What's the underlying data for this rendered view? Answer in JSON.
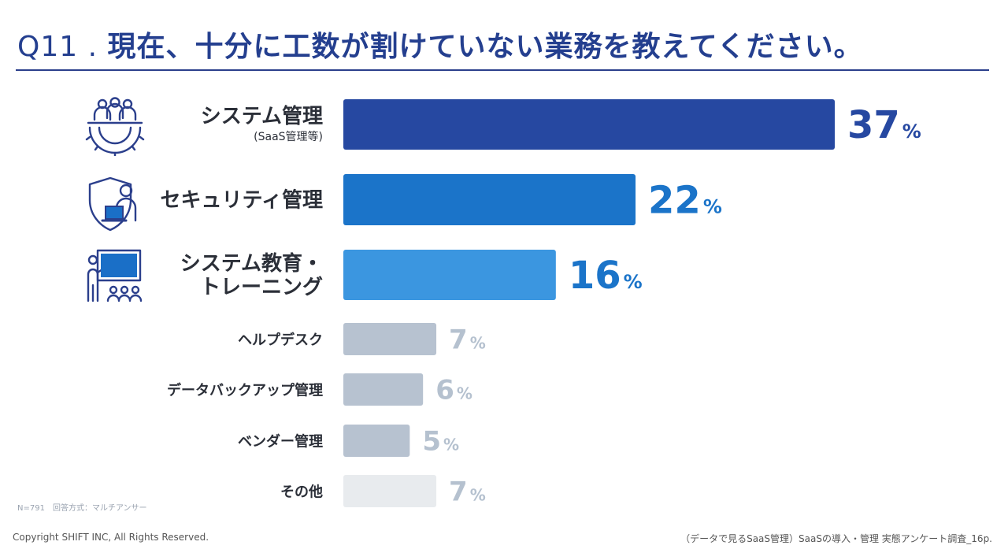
{
  "header": {
    "q_number": "Q11 .",
    "q_text": "現在、十分に工数が割けていない業務を教えてください。"
  },
  "colors": {
    "title": "#243f8f",
    "label": "#2b2f38",
    "value_dark": "#264aa3",
    "value_mid": "#1a6fc7",
    "value_grey": "#b5c1cf",
    "icon": "#2b3f8c",
    "icon_accent": "#1a6fc7"
  },
  "chart_data": {
    "type": "bar",
    "orientation": "horizontal",
    "title": "現在、十分に工数が割けていない業務を教えてください。",
    "xlabel": "",
    "ylabel": "",
    "xlim": [
      0,
      37
    ],
    "unit": "%",
    "categories": [
      {
        "label": "システム管理",
        "sublabel": "(SaaS管理等)",
        "value": 37,
        "color": "#2648a1",
        "value_color": "#2648a1",
        "emphasis": "large",
        "icon": "team-gear-icon"
      },
      {
        "label": "セキュリティ管理",
        "sublabel": "",
        "value": 22,
        "color": "#1b74c9",
        "value_color": "#1b74c9",
        "emphasis": "large",
        "icon": "shield-user-laptop-icon"
      },
      {
        "label": "システム教育・",
        "label2": "トレーニング",
        "sublabel": "",
        "value": 16,
        "color": "#3b96e0",
        "value_color": "#1b74c9",
        "emphasis": "large",
        "icon": "presenter-audience-icon"
      },
      {
        "label": "ヘルプデスク",
        "sublabel": "",
        "value": 7,
        "color": "#b7c2d0",
        "value_color": "#b5c1cf",
        "emphasis": "small",
        "icon": ""
      },
      {
        "label": "データバックアップ管理",
        "sublabel": "",
        "value": 6,
        "color": "#b7c2d0",
        "value_color": "#b5c1cf",
        "emphasis": "small",
        "icon": ""
      },
      {
        "label": "ベンダー管理",
        "sublabel": "",
        "value": 5,
        "color": "#b7c2d0",
        "value_color": "#b5c1cf",
        "emphasis": "small",
        "icon": ""
      },
      {
        "label": "その他",
        "sublabel": "",
        "value": 7,
        "color": "#e8ebee",
        "value_color": "#b5c1cf",
        "emphasis": "small",
        "icon": ""
      }
    ]
  },
  "footer": {
    "n_note": "N=791　回答方式：マルチアンサー",
    "copyright": "Copyright SHIFT INC, All Rights Reserved.",
    "source": "（データで見るSaaS管理）SaaSの導入・管理 実態アンケート調査_16p."
  }
}
